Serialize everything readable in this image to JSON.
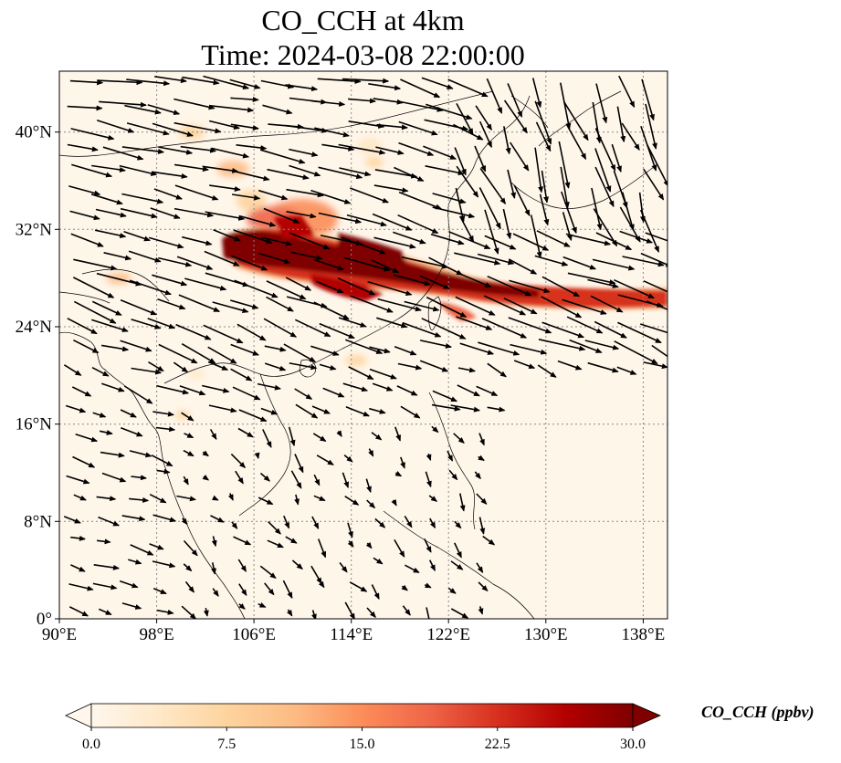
{
  "title": {
    "line1": "CO_CCH at 4km",
    "line2": "Time: 2024-03-08 22:00:00"
  },
  "map": {
    "lon_range": [
      90,
      140
    ],
    "lat_range": [
      0,
      45
    ],
    "lon_ticks": [
      "90°E",
      "98°E",
      "106°E",
      "114°E",
      "122°E",
      "130°E",
      "138°E"
    ],
    "lat_ticks": [
      "0°",
      "8°N",
      "16°N",
      "24°N",
      "32°N",
      "40°N"
    ],
    "lon_tick_values": [
      90,
      98,
      106,
      114,
      122,
      130,
      138
    ],
    "lat_tick_values": [
      0,
      8,
      16,
      24,
      32,
      40
    ],
    "gridlines": true,
    "vector_field": "wind arrows",
    "colors": {
      "background": "#fff6ea",
      "plume": "#7f0000",
      "coast": "#000000",
      "grid": "#888888"
    }
  },
  "colorbar": {
    "label": "CO_CCH (ppbv)",
    "ticks": [
      "0.0",
      "7.5",
      "15.0",
      "22.5",
      "30.0"
    ],
    "min": 0,
    "max": 30,
    "extend": "both",
    "colormap": [
      "#fff7ec",
      "#fee8c8",
      "#fdd49e",
      "#fdbb84",
      "#fc8d59",
      "#ef6548",
      "#d7301f",
      "#b30000",
      "#7f0000"
    ]
  }
}
